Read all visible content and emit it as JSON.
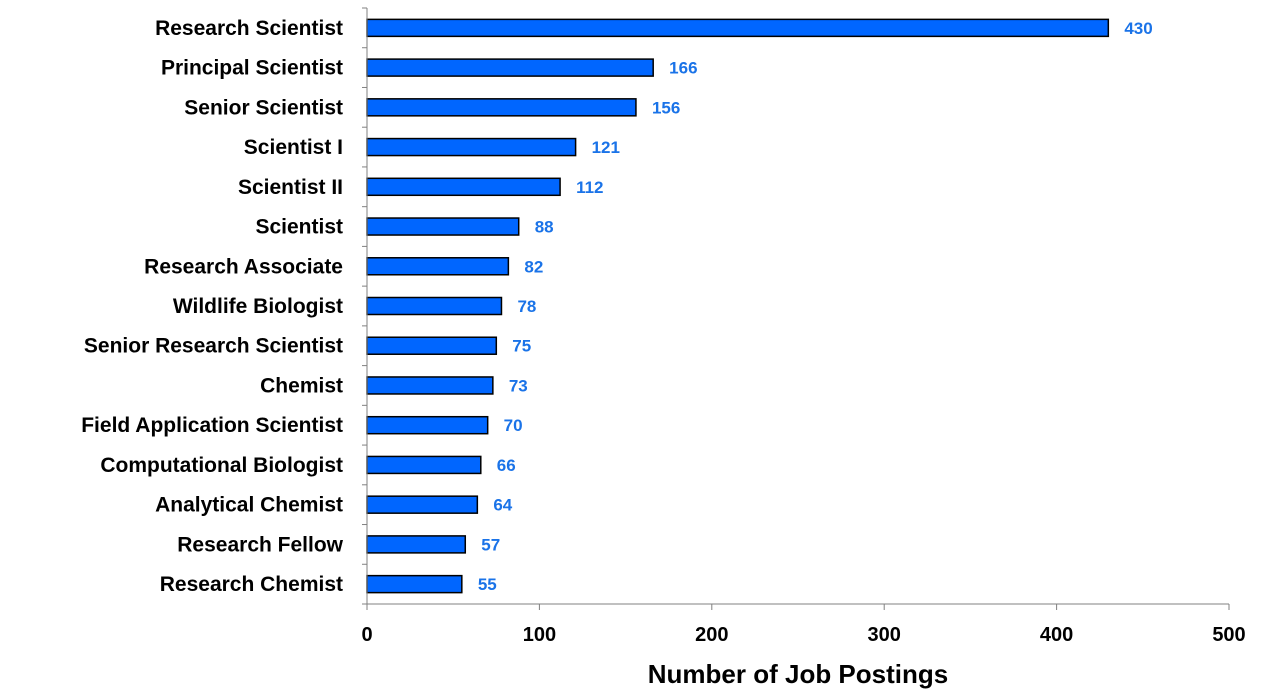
{
  "chart_data": {
    "type": "bar",
    "orientation": "horizontal",
    "categories": [
      "Research Scientist",
      "Principal Scientist",
      "Senior Scientist",
      "Scientist I",
      "Scientist II",
      "Scientist",
      "Research Associate",
      "Wildlife Biologist",
      "Senior Research Scientist",
      "Chemist",
      "Field Application Scientist",
      "Computational Biologist",
      "Analytical Chemist",
      "Research Fellow",
      "Research Chemist"
    ],
    "values": [
      430,
      166,
      156,
      121,
      112,
      88,
      82,
      78,
      75,
      73,
      70,
      66,
      64,
      57,
      55
    ],
    "title": "",
    "xlabel": "Number of Job Postings",
    "ylabel": "",
    "xlim": [
      0,
      500
    ],
    "xticks": [
      0,
      100,
      200,
      300,
      400,
      500
    ],
    "grid": false,
    "legend": "none",
    "colors": {
      "bar_fill": "#0066FF",
      "bar_stroke": "#000000",
      "value_label": "#1A73E8",
      "axis": "#808080"
    }
  }
}
